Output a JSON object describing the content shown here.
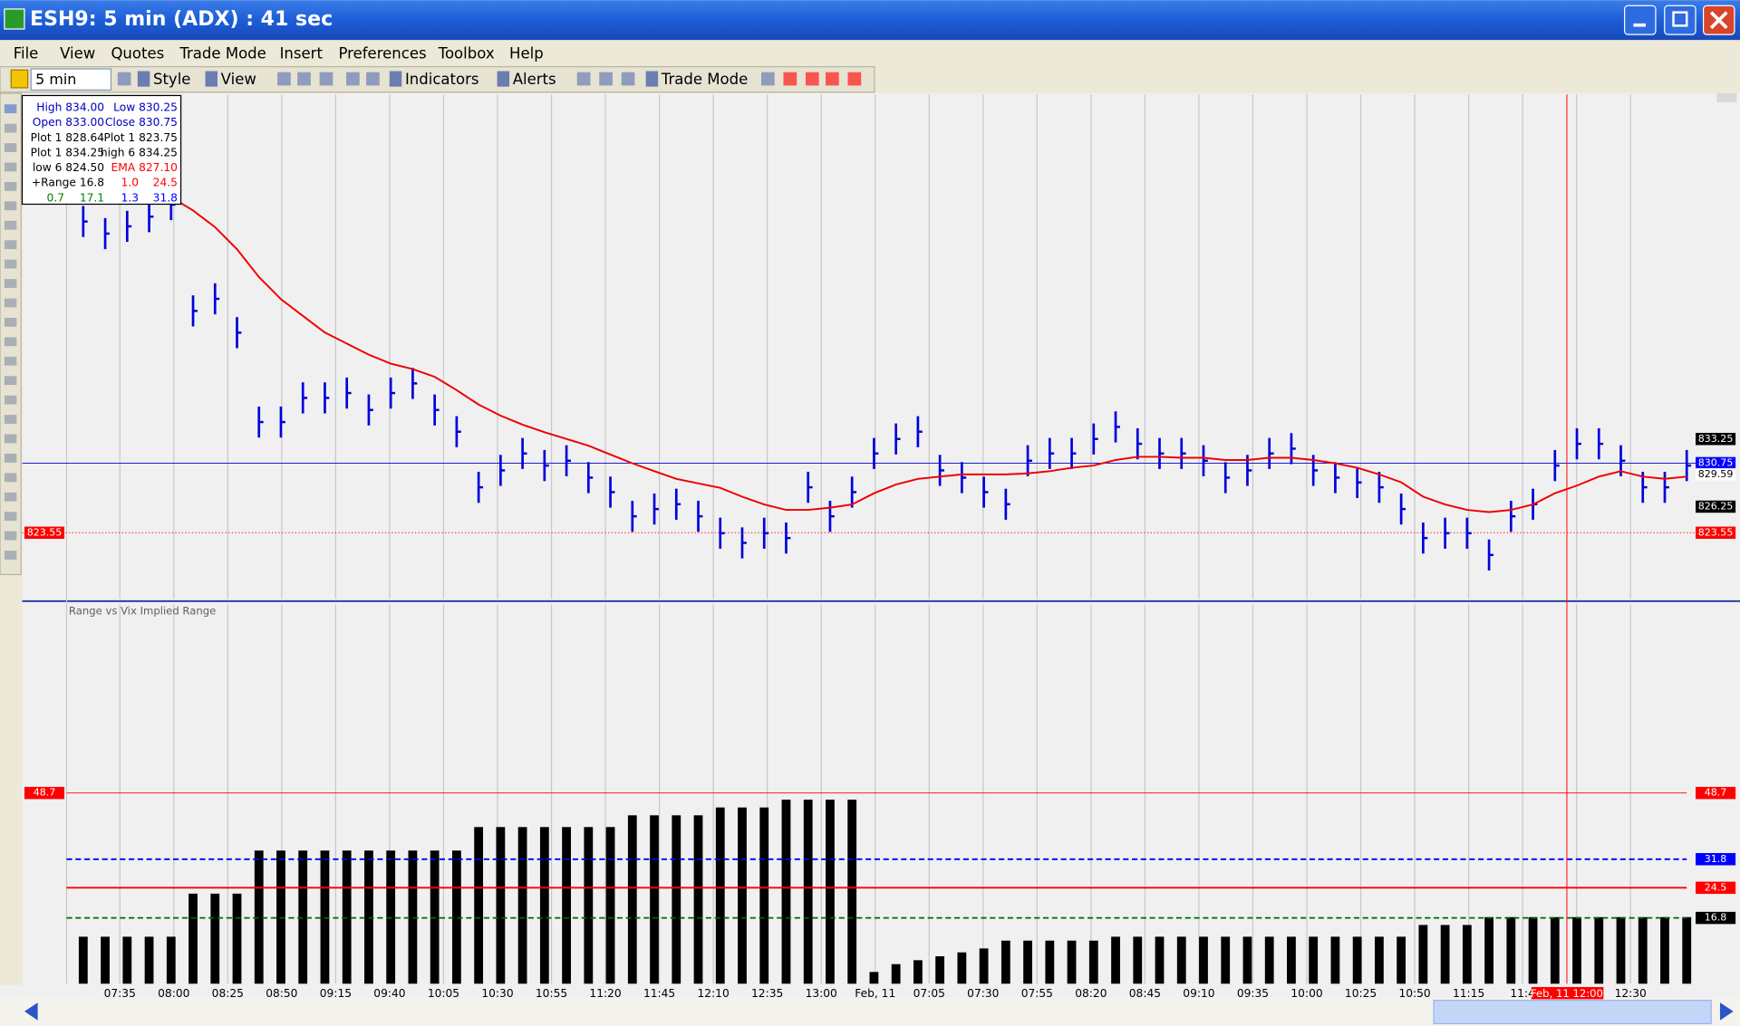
{
  "window": {
    "title": "ESH9: 5 min (ADX) : 41 sec"
  },
  "menu": [
    "File",
    "View",
    "Quotes",
    "Trade Mode",
    "Insert",
    "Preferences",
    "Toolbox",
    "Help"
  ],
  "toolbar": {
    "interval": "5 min",
    "items": [
      "Style",
      "View",
      "Indicators",
      "Alerts",
      "Trade Mode"
    ]
  },
  "info_box": {
    "rows": [
      [
        "High 834.00",
        "Low 830.25"
      ],
      [
        "Open 833.00",
        "Close 830.75"
      ],
      [
        "Plot 1 828.64",
        "Plot 1 823.75"
      ],
      [
        "Plot 1 834.25",
        "high 6 834.25"
      ],
      [
        "low 6 824.50",
        "EMA 827.10"
      ],
      [
        "+Range 16.8",
        "1.0",
        "24.5"
      ],
      [
        "0.7",
        "17.1",
        "1.3",
        "31.8"
      ]
    ],
    "colors": [
      [
        "#0000c0",
        "#0000c0"
      ],
      [
        "#0000c0",
        "#0000c0"
      ],
      [
        "#000000",
        "#000000"
      ],
      [
        "#000000",
        "#000000"
      ],
      [
        "#000000",
        "#ff0000"
      ],
      [
        "#000000",
        "#ff0000",
        "#ff0000"
      ],
      [
        "#008000",
        "#008000",
        "#0000ff",
        "#0000ff"
      ]
    ]
  },
  "chart_data": [
    {
      "type": "price",
      "ylim": [
        816.7,
        868.9
      ],
      "series": [
        {
          "name": "Close",
          "color": "#0000dd",
          "values": [
            855.75,
            854.5,
            855.25,
            856.25,
            857.5,
            846.5,
            847.75,
            844.25,
            835,
            835,
            837.5,
            837.5,
            838,
            836.25,
            838,
            839,
            836.25,
            834,
            828.25,
            830,
            831.75,
            830.5,
            831,
            829.25,
            827.75,
            825.25,
            826,
            826.5,
            825.25,
            823.5,
            822.5,
            823.5,
            823,
            828.25,
            825.25,
            827.75,
            831.75,
            833.25,
            834,
            830,
            829.25,
            827.75,
            826.5,
            831,
            831.75,
            831.75,
            833.25,
            834.5,
            832.75,
            831.75,
            831.75,
            831,
            829.25,
            830,
            831.75,
            832.25,
            830,
            829.25,
            828.75,
            828.25,
            826,
            823,
            823.5,
            823.5,
            821.25,
            825.25,
            826.5,
            830.5,
            832.75,
            832.75,
            831,
            828.25,
            828.25,
            830.5
          ]
        },
        {
          "name": "EMA",
          "color": "#ee0000",
          "values": [
            858.61,
            858.61,
            858.61,
            858.61,
            858.27,
            856.89,
            855.17,
            852.87,
            850.0,
            847.71,
            845.99,
            844.27,
            843.12,
            841.97,
            841.05,
            840.48,
            839.68,
            838.3,
            836.81,
            835.66,
            834.74,
            833.94,
            833.25,
            832.56,
            831.64,
            830.73,
            829.92,
            829.12,
            828.66,
            828.2,
            827.28,
            826.48,
            825.91,
            825.91,
            826.14,
            826.48,
            827.63,
            828.54,
            829.12,
            829.35,
            829.58,
            829.58,
            829.58,
            829.69,
            829.92,
            830.27,
            830.5,
            831.07,
            831.41,
            831.41,
            831.3,
            831.3,
            831.07,
            831.07,
            831.3,
            831.3,
            831.07,
            830.73,
            830.27,
            829.58,
            828.77,
            827.28,
            826.48,
            825.91,
            825.68,
            825.91,
            826.48,
            827.63,
            828.43,
            829.35,
            829.92,
            829.35,
            829.12,
            829.35
          ]
        }
      ],
      "price_labels": [
        {
          "value": 833.25,
          "bg": "#000000",
          "fg": "#ffffff"
        },
        {
          "value": 830.75,
          "bg": "#0000ff",
          "fg": "#ffffff",
          "line": "#0000cc"
        },
        {
          "value": 829.59,
          "bg": "#ffffff",
          "fg": "#000000"
        },
        {
          "value": 826.25,
          "bg": "#000000",
          "fg": "#ffffff"
        },
        {
          "value": 823.55,
          "bg": "#ff0000",
          "fg": "#ffffff",
          "line": "#ff0000",
          "left": true
        }
      ]
    },
    {
      "type": "bar",
      "title": "Range vs Vix Implied Range",
      "ylim": [
        0,
        97.4
      ],
      "color": "#000000",
      "values": [
        12,
        12,
        12,
        12,
        12,
        23,
        23,
        23,
        34,
        34,
        34,
        34,
        34,
        34,
        34,
        34,
        34,
        34,
        40,
        40,
        40,
        40,
        40,
        40,
        40,
        43,
        43,
        43,
        43,
        45,
        45,
        45,
        47,
        47,
        47,
        47,
        3,
        5,
        6,
        7,
        8,
        9,
        11,
        11,
        11,
        11,
        11,
        12,
        12,
        12,
        12,
        12,
        12,
        12,
        12,
        12,
        12,
        12,
        12,
        12,
        12,
        15,
        15,
        15,
        17,
        17,
        17,
        17,
        17,
        17,
        17,
        17,
        17,
        17
      ],
      "ref_lines": [
        {
          "value": 48.7,
          "color": "#ff0000",
          "left": true
        },
        {
          "value": 31.8,
          "color": "#0000ff",
          "dash": true
        },
        {
          "value": 24.5,
          "color": "#ff0000"
        },
        {
          "value": 16.8,
          "color": "#006600",
          "dash": true,
          "bg": "#000000"
        }
      ]
    }
  ],
  "x_axis": {
    "labels": [
      "07:35",
      "08:00",
      "08:25",
      "08:50",
      "09:15",
      "09:40",
      "10:05",
      "10:30",
      "10:55",
      "11:20",
      "11:45",
      "12:10",
      "12:35",
      "13:00",
      "Feb, 11",
      "07:05",
      "07:30",
      "07:55",
      "08:20",
      "08:45",
      "09:10",
      "09:35",
      "10:00",
      "10:25",
      "10:50",
      "11:15",
      "11:4",
      null,
      "12:30"
    ],
    "cursor": "Feb, 11 12:00"
  }
}
